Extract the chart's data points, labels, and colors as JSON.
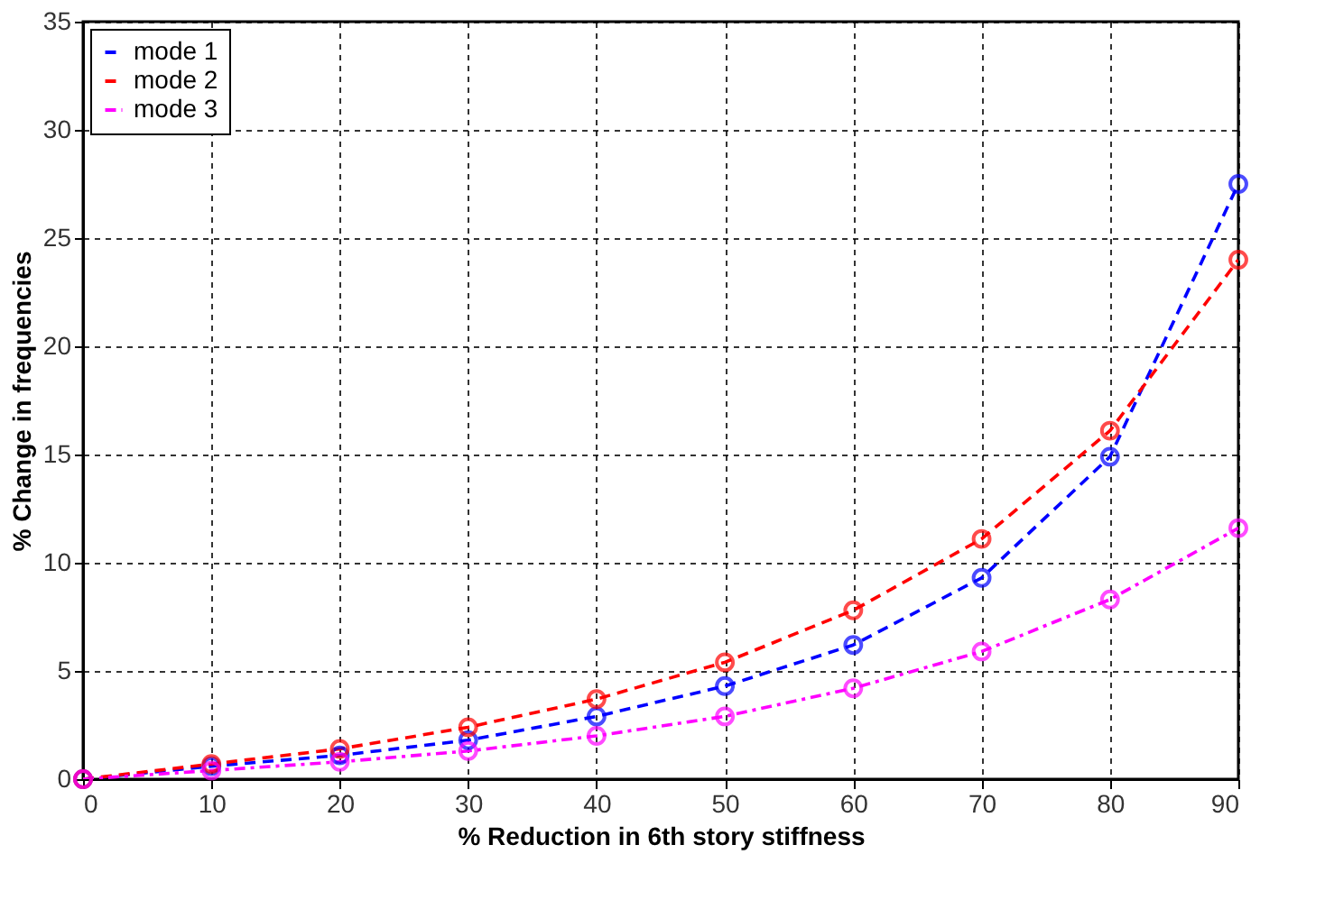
{
  "chart_data": {
    "type": "line",
    "xlabel": "%  Reduction in 6th story stiffness",
    "ylabel": "%  Change in frequencies",
    "x": [
      0,
      10,
      20,
      30,
      40,
      50,
      60,
      70,
      80,
      90
    ],
    "series": [
      {
        "name": "mode 1",
        "color": "#0000ff",
        "line_style": "dashed",
        "values": [
          0,
          0.6,
          1.1,
          1.8,
          2.9,
          4.3,
          6.2,
          9.3,
          14.9,
          27.5
        ]
      },
      {
        "name": "mode 2",
        "color": "#ff0000",
        "line_style": "dashed",
        "values": [
          0,
          0.7,
          1.4,
          2.4,
          3.7,
          5.4,
          7.8,
          11.1,
          16.1,
          24.0
        ]
      },
      {
        "name": "mode 3",
        "color": "#ff00ff",
        "line_style": "dashdot",
        "values": [
          0,
          0.4,
          0.8,
          1.3,
          2.0,
          2.9,
          4.2,
          5.9,
          8.3,
          11.6
        ]
      }
    ],
    "xlim": [
      0,
      90
    ],
    "xticks": [
      0,
      10,
      20,
      30,
      40,
      50,
      60,
      70,
      80,
      90
    ],
    "ylim": [
      0,
      35
    ],
    "yticks": [
      0,
      5,
      10,
      15,
      20,
      25,
      30,
      35
    ],
    "grid": true,
    "legend": "top left",
    "marker": "circle"
  }
}
